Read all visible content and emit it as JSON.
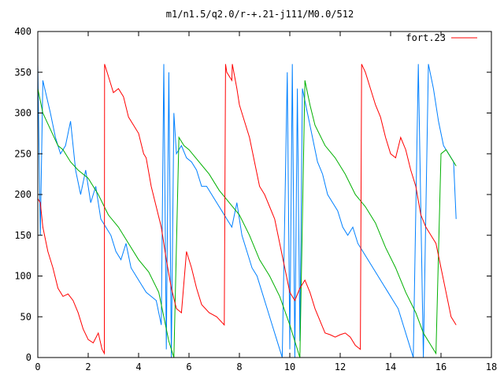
{
  "chart_data": {
    "type": "line",
    "title": "m1/n1.5/q2.0/r-+.21-j111/M0.0/512",
    "xlabel": "",
    "ylabel": "",
    "xlim": [
      0,
      18
    ],
    "ylim": [
      0,
      400
    ],
    "xticks": [
      0,
      2,
      4,
      6,
      8,
      10,
      12,
      14,
      16,
      18
    ],
    "yticks": [
      0,
      50,
      100,
      150,
      200,
      250,
      300,
      350,
      400
    ],
    "grid": false,
    "legend": {
      "position": "top-right"
    },
    "series": [
      {
        "name": "fort.23",
        "color": "#ff0000",
        "x": [
          0.0,
          0.1,
          0.2,
          0.4,
          0.6,
          0.8,
          1.0,
          1.2,
          1.4,
          1.6,
          1.8,
          2.0,
          2.2,
          2.4,
          2.55,
          2.64,
          2.65,
          2.8,
          3.0,
          3.2,
          3.4,
          3.6,
          3.8,
          4.0,
          4.2,
          4.3,
          4.5,
          4.7,
          4.9,
          5.1,
          5.3,
          5.5,
          5.7,
          5.9,
          6.1,
          6.3,
          6.5,
          6.8,
          7.1,
          7.4,
          7.45,
          7.5,
          7.7,
          7.72,
          7.9,
          7.95,
          8.0,
          8.2,
          8.4,
          8.6,
          8.8,
          9.0,
          9.2,
          9.4,
          9.6,
          9.8,
          10.0,
          10.2,
          10.4,
          10.6,
          10.8,
          11.0,
          11.2,
          11.4,
          11.6,
          11.8,
          12.0,
          12.2,
          12.4,
          12.6,
          12.8,
          12.85,
          13.0,
          13.2,
          13.4,
          13.6,
          13.8,
          14.0,
          14.2,
          14.4,
          14.6,
          14.8,
          15.0,
          15.2,
          15.4,
          15.6,
          15.8,
          16.0,
          16.2,
          16.4,
          16.6
        ],
        "y": [
          195,
          190,
          160,
          130,
          110,
          85,
          75,
          78,
          70,
          55,
          35,
          22,
          18,
          30,
          10,
          5,
          360,
          345,
          325,
          330,
          320,
          295,
          285,
          275,
          250,
          245,
          210,
          185,
          160,
          120,
          85,
          60,
          55,
          130,
          110,
          85,
          65,
          55,
          50,
          40,
          360,
          350,
          340,
          360,
          330,
          320,
          310,
          290,
          270,
          240,
          210,
          200,
          185,
          170,
          140,
          110,
          80,
          70,
          85,
          95,
          80,
          60,
          45,
          30,
          28,
          25,
          28,
          30,
          25,
          15,
          10,
          360,
          350,
          330,
          310,
          295,
          270,
          250,
          245,
          270,
          255,
          230,
          210,
          175,
          160,
          150,
          140,
          110,
          80,
          50,
          40
        ]
      },
      {
        "name": "",
        "color": "#00b000",
        "x": [
          0.0,
          0.2,
          0.5,
          0.8,
          1.0,
          1.3,
          1.6,
          2.0,
          2.4,
          2.8,
          3.2,
          3.6,
          4.0,
          4.4,
          4.8,
          5.0,
          5.2,
          5.4,
          5.6,
          5.8,
          6.0,
          6.4,
          6.8,
          7.2,
          7.6,
          8.0,
          8.4,
          8.8,
          9.2,
          9.6,
          10.0,
          10.4,
          10.6,
          10.8,
          11.0,
          11.4,
          11.8,
          12.2,
          12.6,
          13.0,
          13.4,
          13.8,
          14.2,
          14.6,
          15.0,
          15.3,
          15.6,
          15.8,
          16.0,
          16.2,
          16.4,
          16.6
        ],
        "y": [
          330,
          300,
          280,
          260,
          255,
          240,
          230,
          220,
          200,
          175,
          160,
          140,
          120,
          105,
          80,
          50,
          20,
          0,
          270,
          260,
          255,
          240,
          225,
          205,
          190,
          175,
          150,
          120,
          100,
          75,
          40,
          0,
          340,
          310,
          285,
          260,
          245,
          225,
          200,
          185,
          165,
          135,
          110,
          80,
          55,
          30,
          15,
          5,
          250,
          255,
          245,
          235
        ]
      },
      {
        "name": "",
        "color": "#0080ff",
        "x": [
          0.0,
          0.1,
          0.2,
          0.35,
          0.5,
          0.7,
          0.9,
          1.1,
          1.3,
          1.5,
          1.7,
          1.9,
          2.1,
          2.3,
          2.5,
          2.7,
          2.9,
          3.1,
          3.3,
          3.5,
          3.7,
          3.9,
          4.1,
          4.3,
          4.5,
          4.7,
          4.9,
          5.0,
          5.1,
          5.2,
          5.3,
          5.4,
          5.5,
          5.7,
          5.9,
          6.1,
          6.3,
          6.5,
          6.7,
          6.9,
          7.1,
          7.3,
          7.5,
          7.7,
          7.9,
          8.1,
          8.3,
          8.5,
          8.7,
          8.9,
          9.1,
          9.3,
          9.5,
          9.7,
          9.9,
          10.0,
          10.1,
          10.2,
          10.3,
          10.4,
          10.5,
          10.7,
          10.9,
          11.1,
          11.3,
          11.5,
          11.7,
          11.9,
          12.1,
          12.3,
          12.5,
          12.7,
          12.9,
          13.1,
          13.3,
          13.5,
          13.7,
          13.9,
          14.1,
          14.3,
          14.5,
          14.7,
          14.9,
          15.1,
          15.3,
          15.5,
          15.7,
          15.9,
          16.1,
          16.3,
          16.5,
          16.6
        ],
        "y": [
          360,
          150,
          340,
          320,
          300,
          270,
          250,
          260,
          290,
          230,
          200,
          230,
          190,
          210,
          170,
          160,
          150,
          130,
          120,
          140,
          110,
          100,
          90,
          80,
          75,
          70,
          40,
          360,
          10,
          350,
          0,
          300,
          250,
          260,
          245,
          240,
          230,
          210,
          210,
          200,
          190,
          180,
          170,
          160,
          190,
          150,
          130,
          110,
          100,
          80,
          60,
          40,
          20,
          0,
          350,
          10,
          360,
          0,
          330,
          20,
          330,
          300,
          270,
          240,
          225,
          200,
          190,
          180,
          160,
          150,
          160,
          140,
          130,
          120,
          110,
          100,
          90,
          80,
          70,
          60,
          40,
          20,
          0,
          360,
          0,
          360,
          330,
          290,
          260,
          250,
          240,
          170
        ]
      }
    ]
  }
}
